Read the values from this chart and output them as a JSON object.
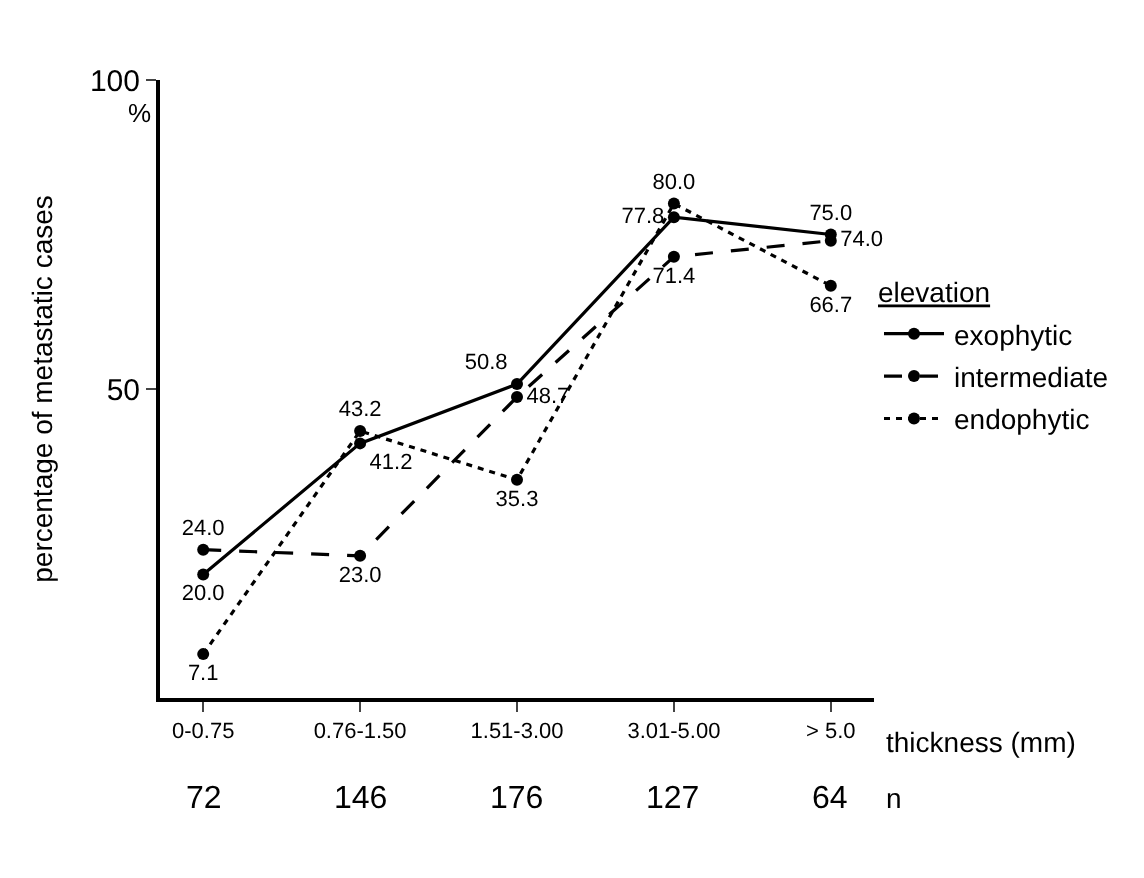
{
  "chart_data": {
    "type": "line",
    "ylabel": "percentage of metastatic cases",
    "xlabel": "thickness (mm)",
    "legend_title": "elevation",
    "categories": [
      "0-0.75",
      "0.76-1.50",
      "1.51-3.00",
      "3.01-5.00",
      "> 5.0"
    ],
    "series": [
      {
        "name": "exophytic",
        "color": "#000000",
        "line_style": "solid",
        "values": [
          20.0,
          41.2,
          50.8,
          77.8,
          75.0
        ],
        "value_labels": [
          "20.0",
          "41.2",
          "50.8",
          "77.8",
          "75.0"
        ]
      },
      {
        "name": "intermediate",
        "color": "#000000",
        "line_style": "dashed",
        "values": [
          24.0,
          23.0,
          48.7,
          71.4,
          74.0
        ],
        "value_labels": [
          "24.0",
          "23.0",
          "48.7",
          "71.4",
          "74.0"
        ]
      },
      {
        "name": "endophytic",
        "color": "#000000",
        "line_style": "dotted",
        "values": [
          7.1,
          43.2,
          35.3,
          80.0,
          66.7
        ],
        "value_labels": [
          "7.1",
          "43.2",
          "35.3",
          "80.0",
          "66.7"
        ]
      }
    ],
    "ylim": [
      0,
      100
    ],
    "yticks": [
      50,
      100
    ],
    "annotations": [
      "%",
      "72",
      "146",
      "176",
      "127",
      "64",
      "n"
    ],
    "marker": "circle",
    "legend": "right"
  }
}
